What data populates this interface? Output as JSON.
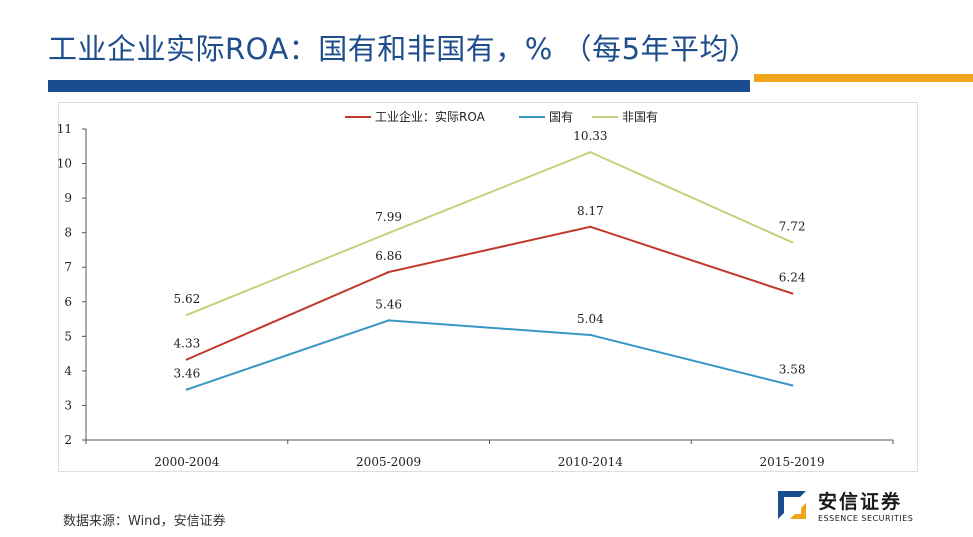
{
  "title": "工业企业实际ROA：国有和非国有，%  （每5年平均）",
  "source": "数据来源：Wind，安信证券",
  "logo": {
    "name_cn": "安信证券",
    "name_en": "ESSENCE SECURITIES"
  },
  "colors": {
    "title": "#1f4e8c",
    "bar_blue": "#1a4d8f",
    "bar_orange": "#f0a51a"
  },
  "chart_data": {
    "type": "line",
    "title": "",
    "xlabel": "",
    "ylabel": "",
    "categories": [
      "2000-2004",
      "2005-2009",
      "2010-2014",
      "2015-2019"
    ],
    "ylim": [
      2,
      11
    ],
    "yticks": [
      2,
      3,
      4,
      5,
      6,
      7,
      8,
      9,
      10,
      11
    ],
    "legend_position": "top-center",
    "grid": false,
    "series": [
      {
        "name": "工业企业：实际ROA",
        "color": "#c0392b",
        "values": [
          4.33,
          6.86,
          8.17,
          6.24
        ],
        "labels": [
          "4.33",
          "6.86",
          "8.17",
          "6.24"
        ]
      },
      {
        "name": "国有",
        "color": "#3a96c4",
        "values": [
          3.46,
          5.46,
          5.04,
          3.58
        ],
        "labels": [
          "3.46",
          "5.46",
          "5.04",
          "3.58"
        ]
      },
      {
        "name": "非国有",
        "color": "#c8cf7e",
        "values": [
          5.62,
          7.99,
          10.33,
          7.72
        ],
        "labels": [
          "5.62",
          "7.99",
          "10.33",
          "7.72"
        ]
      }
    ]
  }
}
